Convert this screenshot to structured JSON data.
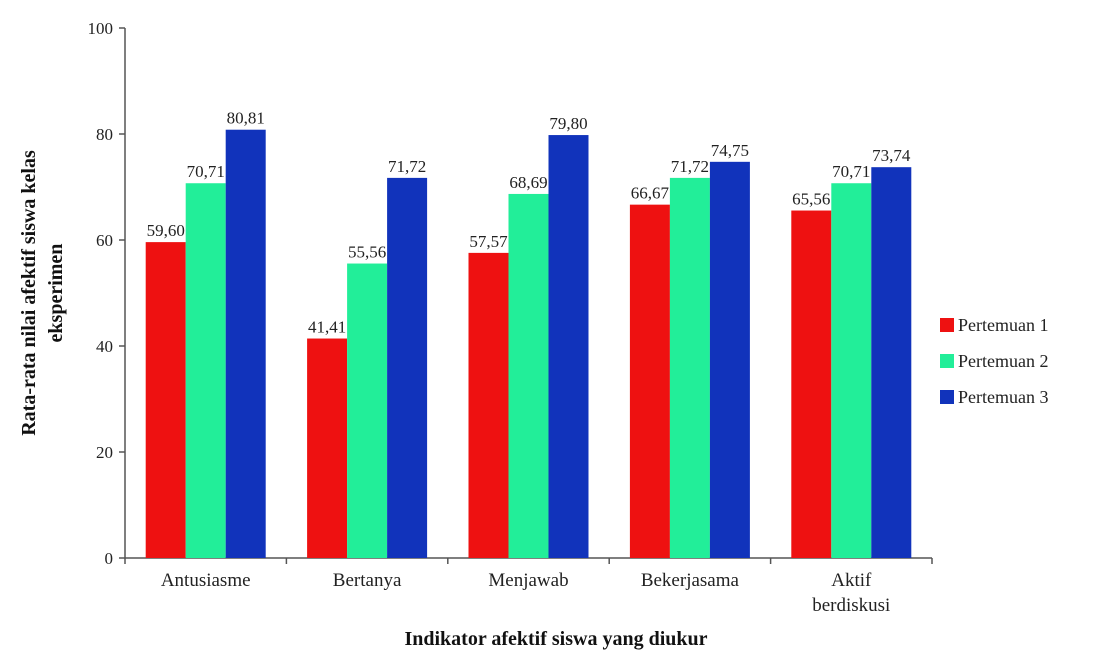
{
  "chart_data": {
    "type": "bar",
    "title": "",
    "xlabel": "Indikator afektif siswa yang diukur",
    "ylabel_lines": [
      "Rata-rata nilai afektif siswa kelas",
      "eksperimen"
    ],
    "ylim": [
      0,
      100
    ],
    "yticks": [
      "0",
      "20",
      "40",
      "60",
      "80",
      "100"
    ],
    "categories": [
      [
        "Antusiasme"
      ],
      [
        "Bertanya"
      ],
      [
        "Menjawab"
      ],
      [
        "Bekerjasama"
      ],
      [
        "Aktif",
        "berdiskusi"
      ]
    ],
    "series": [
      {
        "name": "Pertemuan 1",
        "color": "#ee1111",
        "values": [
          59.6,
          41.41,
          57.57,
          66.67,
          65.56
        ],
        "labels": [
          "59,60",
          "41,41",
          "57,57",
          "66,67",
          "65,56"
        ]
      },
      {
        "name": "Pertemuan 2",
        "color": "#22ee99",
        "values": [
          70.71,
          55.56,
          68.69,
          71.72,
          70.71
        ],
        "labels": [
          "70,71",
          "55,56",
          "68,69",
          "71,72",
          "70,71"
        ]
      },
      {
        "name": "Pertemuan 3",
        "color": "#1133bb",
        "values": [
          80.81,
          71.72,
          79.8,
          74.75,
          73.74
        ],
        "labels": [
          "80,81",
          "71,72",
          "79,80",
          "74,75",
          "73,74"
        ]
      }
    ],
    "grid": false,
    "legend_position": "right"
  }
}
